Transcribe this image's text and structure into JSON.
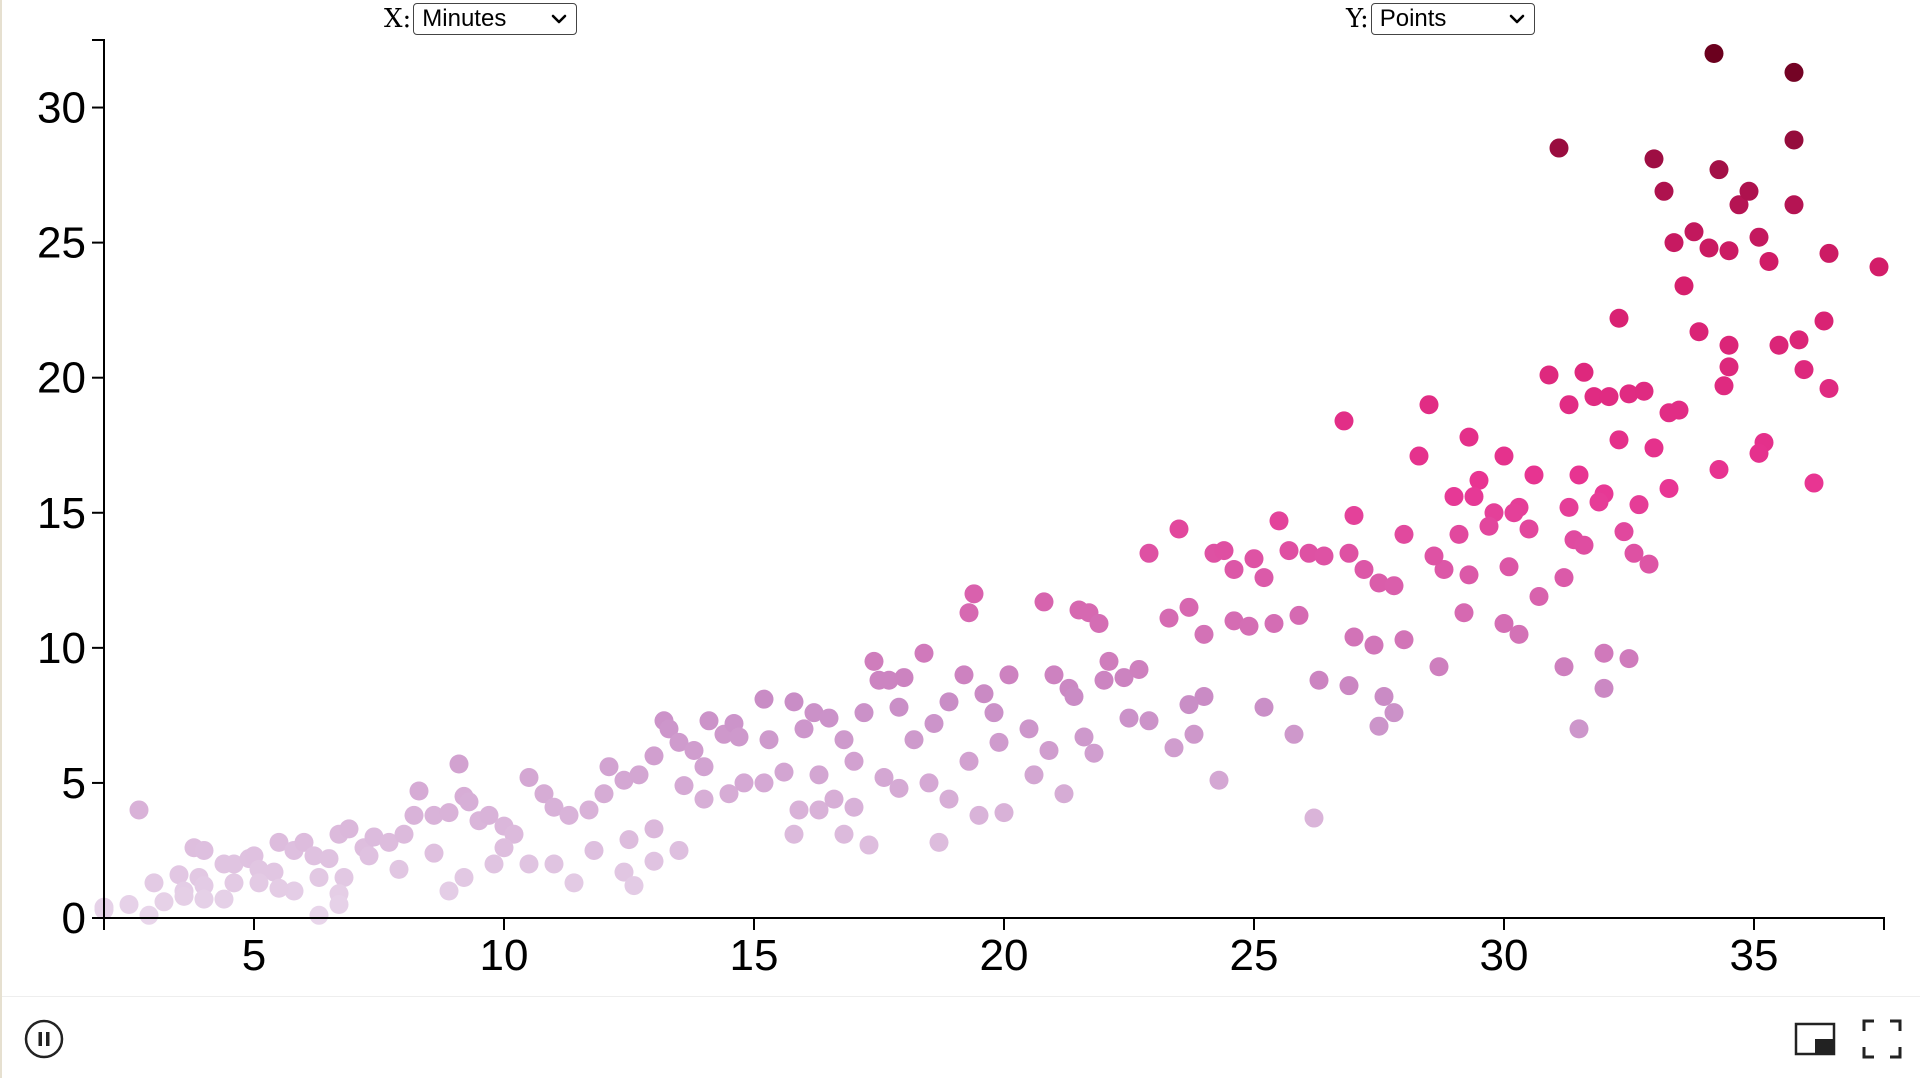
{
  "controls": {
    "x_label": "X:",
    "x_selected": "Minutes",
    "y_label": "Y:",
    "y_selected": "Points"
  },
  "footer": {
    "pause_icon": "pause-icon",
    "pip_icon": "picture-in-picture-icon",
    "fullscreen_icon": "fullscreen-icon"
  },
  "chart_data": {
    "type": "scatter",
    "title": "",
    "xlabel": "",
    "ylabel": "",
    "xlim": [
      2,
      37.6
    ],
    "ylim": [
      0,
      32.5
    ],
    "x_ticks": [
      5,
      10,
      15,
      20,
      25,
      30,
      35
    ],
    "y_ticks": [
      0,
      5,
      10,
      15,
      20,
      25,
      30
    ],
    "grid": false,
    "color_scale": [
      "#e8d6ea",
      "#c98dc6",
      "#e83593",
      "#d41d6a",
      "#6b001e"
    ],
    "color_domain_min": 0,
    "color_domain_max": 32,
    "points": [
      [
        2.7,
        4.0
      ],
      [
        3.8,
        2.6
      ],
      [
        4.0,
        2.5
      ],
      [
        2.5,
        0.5
      ],
      [
        2.0,
        0.3
      ],
      [
        3.0,
        1.3
      ],
      [
        3.5,
        1.6
      ],
      [
        3.6,
        1.0
      ],
      [
        3.9,
        1.5
      ],
      [
        4.0,
        1.2
      ],
      [
        4.4,
        2.0
      ],
      [
        4.6,
        2.0
      ],
      [
        4.9,
        2.2
      ],
      [
        5.0,
        2.3
      ],
      [
        5.1,
        1.8
      ],
      [
        5.4,
        1.7
      ],
      [
        5.5,
        2.8
      ],
      [
        5.8,
        2.5
      ],
      [
        6.0,
        2.8
      ],
      [
        6.2,
        2.3
      ],
      [
        6.5,
        2.2
      ],
      [
        6.7,
        3.1
      ],
      [
        6.9,
        3.3
      ],
      [
        7.2,
        2.6
      ],
      [
        7.4,
        3.0
      ],
      [
        7.7,
        2.8
      ],
      [
        8.0,
        3.1
      ],
      [
        8.2,
        3.8
      ],
      [
        8.3,
        4.7
      ],
      [
        8.6,
        3.8
      ],
      [
        8.9,
        3.9
      ],
      [
        9.1,
        5.7
      ],
      [
        9.2,
        4.5
      ],
      [
        9.3,
        4.3
      ],
      [
        9.5,
        3.6
      ],
      [
        9.7,
        3.8
      ],
      [
        10.0,
        3.4
      ],
      [
        10.2,
        3.1
      ],
      [
        10.5,
        5.2
      ],
      [
        10.8,
        4.6
      ],
      [
        11.0,
        4.1
      ],
      [
        11.3,
        3.8
      ],
      [
        11.7,
        4.0
      ],
      [
        12.0,
        4.6
      ],
      [
        12.1,
        5.6
      ],
      [
        12.4,
        5.1
      ],
      [
        12.7,
        5.3
      ],
      [
        13.0,
        6.0
      ],
      [
        13.2,
        7.3
      ],
      [
        13.3,
        7.0
      ],
      [
        13.5,
        6.5
      ],
      [
        13.8,
        6.2
      ],
      [
        14.1,
        7.3
      ],
      [
        14.4,
        6.8
      ],
      [
        14.6,
        7.2
      ],
      [
        14.7,
        6.7
      ],
      [
        15.2,
        8.1
      ],
      [
        15.3,
        6.6
      ],
      [
        15.8,
        8.0
      ],
      [
        16.0,
        7.0
      ],
      [
        16.2,
        7.6
      ],
      [
        16.5,
        7.4
      ],
      [
        16.8,
        6.6
      ],
      [
        17.2,
        7.6
      ],
      [
        17.4,
        9.5
      ],
      [
        17.5,
        8.8
      ],
      [
        17.7,
        8.8
      ],
      [
        17.9,
        7.8
      ],
      [
        18.0,
        8.9
      ],
      [
        18.4,
        9.8
      ],
      [
        18.6,
        7.2
      ],
      [
        18.9,
        8.0
      ],
      [
        19.2,
        9.0
      ],
      [
        19.3,
        11.3
      ],
      [
        19.4,
        12.0
      ],
      [
        19.6,
        8.3
      ],
      [
        19.8,
        7.6
      ],
      [
        20.1,
        9.0
      ],
      [
        20.5,
        7.0
      ],
      [
        20.8,
        11.7
      ],
      [
        21.0,
        9.0
      ],
      [
        21.3,
        8.5
      ],
      [
        21.5,
        11.4
      ],
      [
        21.7,
        11.3
      ],
      [
        21.9,
        10.9
      ],
      [
        22.1,
        9.5
      ],
      [
        22.4,
        8.9
      ],
      [
        22.7,
        9.2
      ],
      [
        22.9,
        13.5
      ],
      [
        23.3,
        11.1
      ],
      [
        23.5,
        14.4
      ],
      [
        23.7,
        11.5
      ],
      [
        24.0,
        10.5
      ],
      [
        24.2,
        13.5
      ],
      [
        24.4,
        13.6
      ],
      [
        24.6,
        11.0
      ],
      [
        24.9,
        10.8
      ],
      [
        25.2,
        12.6
      ],
      [
        25.5,
        14.7
      ],
      [
        25.7,
        13.6
      ],
      [
        25.9,
        11.2
      ],
      [
        26.1,
        13.5
      ],
      [
        26.4,
        13.4
      ],
      [
        26.8,
        18.4
      ],
      [
        27.0,
        14.9
      ],
      [
        27.2,
        12.9
      ],
      [
        27.5,
        12.4
      ],
      [
        27.8,
        12.3
      ],
      [
        28.0,
        14.2
      ],
      [
        28.3,
        17.1
      ],
      [
        28.5,
        19.0
      ],
      [
        28.8,
        12.9
      ],
      [
        29.0,
        15.6
      ],
      [
        29.3,
        17.8
      ],
      [
        29.5,
        16.2
      ],
      [
        29.8,
        15.0
      ],
      [
        30.0,
        17.1
      ],
      [
        30.3,
        15.2
      ],
      [
        30.6,
        16.4
      ],
      [
        30.9,
        20.1
      ],
      [
        31.1,
        28.5
      ],
      [
        31.3,
        19.0
      ],
      [
        31.6,
        20.2
      ],
      [
        31.8,
        19.3
      ],
      [
        32.1,
        19.3
      ],
      [
        32.3,
        22.2
      ],
      [
        32.5,
        19.4
      ],
      [
        32.8,
        19.5
      ],
      [
        33.0,
        28.1
      ],
      [
        33.2,
        26.9
      ],
      [
        33.4,
        25.0
      ],
      [
        33.6,
        23.4
      ],
      [
        33.8,
        25.4
      ],
      [
        33.9,
        21.7
      ],
      [
        34.1,
        24.8
      ],
      [
        34.2,
        32.0
      ],
      [
        34.3,
        27.7
      ],
      [
        34.5,
        24.7
      ],
      [
        34.7,
        26.4
      ],
      [
        34.9,
        26.9
      ],
      [
        35.1,
        25.2
      ],
      [
        35.3,
        24.3
      ],
      [
        35.8,
        31.3
      ],
      [
        35.8,
        28.8
      ],
      [
        35.8,
        26.4
      ],
      [
        36.5,
        24.6
      ],
      [
        37.5,
        24.1
      ],
      [
        35.5,
        21.2
      ],
      [
        36.4,
        22.1
      ],
      [
        35.9,
        21.4
      ],
      [
        34.5,
        21.2
      ],
      [
        34.5,
        20.4
      ],
      [
        33.3,
        18.7
      ],
      [
        33.5,
        18.8
      ],
      [
        34.4,
        19.7
      ],
      [
        36.0,
        20.3
      ],
      [
        36.5,
        19.6
      ],
      [
        32.3,
        17.7
      ],
      [
        33.0,
        17.4
      ],
      [
        33.3,
        15.9
      ],
      [
        34.3,
        16.6
      ],
      [
        35.2,
        17.6
      ],
      [
        35.1,
        17.2
      ],
      [
        36.2,
        16.1
      ],
      [
        31.5,
        16.4
      ],
      [
        31.4,
        14.0
      ],
      [
        32.4,
        14.3
      ],
      [
        32.6,
        13.5
      ],
      [
        32.9,
        13.1
      ],
      [
        30.7,
        11.9
      ],
      [
        30.3,
        10.5
      ],
      [
        30.0,
        10.9
      ],
      [
        30.1,
        13.0
      ],
      [
        31.2,
        12.6
      ],
      [
        31.6,
        13.8
      ],
      [
        32.0,
        9.8
      ],
      [
        32.5,
        9.6
      ],
      [
        31.2,
        9.3
      ],
      [
        31.5,
        7.0
      ],
      [
        32.0,
        8.5
      ],
      [
        27.0,
        10.4
      ],
      [
        27.4,
        10.1
      ],
      [
        28.0,
        10.3
      ],
      [
        28.7,
        9.3
      ],
      [
        29.2,
        11.3
      ],
      [
        26.3,
        8.8
      ],
      [
        25.2,
        7.8
      ],
      [
        25.8,
        6.8
      ],
      [
        26.9,
        8.6
      ],
      [
        27.8,
        7.6
      ],
      [
        26.2,
        3.7
      ],
      [
        27.5,
        7.1
      ],
      [
        27.6,
        8.2
      ],
      [
        23.8,
        6.8
      ],
      [
        24.0,
        8.2
      ],
      [
        24.3,
        5.1
      ],
      [
        22.9,
        7.3
      ],
      [
        23.4,
        6.3
      ],
      [
        23.7,
        7.9
      ],
      [
        22.5,
        7.4
      ],
      [
        21.8,
        6.1
      ],
      [
        21.2,
        4.6
      ],
      [
        20.9,
        6.2
      ],
      [
        20.6,
        5.3
      ],
      [
        20.0,
        3.9
      ],
      [
        19.5,
        3.8
      ],
      [
        19.9,
        6.5
      ],
      [
        19.3,
        5.8
      ],
      [
        18.9,
        4.4
      ],
      [
        18.5,
        5.0
      ],
      [
        18.7,
        2.8
      ],
      [
        17.6,
        5.2
      ],
      [
        17.9,
        4.8
      ],
      [
        17.3,
        2.7
      ],
      [
        16.8,
        3.1
      ],
      [
        16.3,
        4.0
      ],
      [
        15.8,
        3.1
      ],
      [
        15.6,
        5.4
      ],
      [
        16.6,
        4.4
      ],
      [
        15.2,
        5.0
      ],
      [
        14.5,
        4.6
      ],
      [
        14.0,
        4.4
      ],
      [
        13.6,
        4.9
      ],
      [
        13.0,
        3.3
      ],
      [
        12.5,
        2.9
      ],
      [
        12.4,
        1.7
      ],
      [
        12.6,
        1.2
      ],
      [
        11.8,
        2.5
      ],
      [
        11.0,
        2.0
      ],
      [
        11.4,
        1.3
      ],
      [
        10.5,
        2.0
      ],
      [
        10.0,
        2.6
      ],
      [
        9.8,
        2.0
      ],
      [
        9.2,
        1.5
      ],
      [
        8.9,
        1.0
      ],
      [
        8.6,
        2.4
      ],
      [
        7.9,
        1.8
      ],
      [
        7.3,
        2.3
      ],
      [
        6.8,
        1.5
      ],
      [
        6.7,
        0.9
      ],
      [
        6.3,
        1.5
      ],
      [
        6.7,
        0.5
      ],
      [
        6.3,
        0.1
      ],
      [
        5.8,
        1.0
      ],
      [
        5.5,
        1.1
      ],
      [
        5.1,
        1.3
      ],
      [
        4.6,
        1.3
      ],
      [
        4.4,
        0.7
      ],
      [
        4.0,
        0.7
      ],
      [
        3.6,
        0.8
      ],
      [
        3.2,
        0.6
      ],
      [
        2.9,
        0.1
      ],
      [
        2.0,
        0.4
      ],
      [
        13.5,
        2.5
      ],
      [
        13.0,
        2.1
      ],
      [
        14.0,
        5.6
      ],
      [
        14.8,
        5.0
      ],
      [
        15.9,
        4.0
      ],
      [
        16.3,
        5.3
      ],
      [
        17.0,
        4.1
      ],
      [
        18.2,
        6.6
      ],
      [
        17.0,
        5.8
      ],
      [
        21.4,
        8.2
      ],
      [
        21.6,
        6.7
      ],
      [
        22.0,
        8.8
      ],
      [
        25.4,
        10.9
      ],
      [
        25.0,
        13.3
      ],
      [
        24.6,
        12.9
      ],
      [
        26.9,
        13.5
      ],
      [
        28.6,
        13.4
      ],
      [
        29.3,
        12.7
      ],
      [
        29.7,
        14.5
      ],
      [
        30.5,
        14.4
      ],
      [
        29.4,
        15.6
      ],
      [
        29.1,
        14.2
      ],
      [
        30.2,
        15.0
      ],
      [
        31.3,
        15.2
      ],
      [
        32.0,
        15.7
      ],
      [
        31.9,
        15.4
      ],
      [
        32.7,
        15.3
      ]
    ]
  }
}
